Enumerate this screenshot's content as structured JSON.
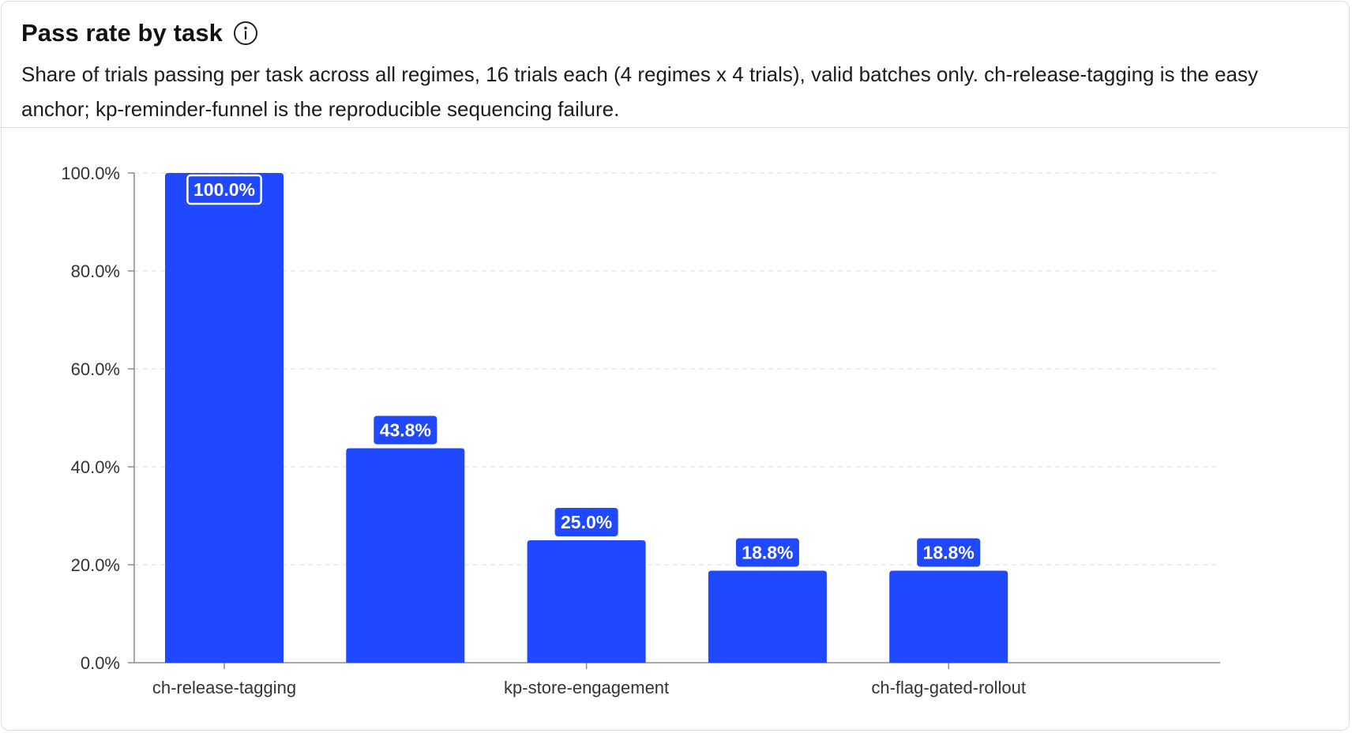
{
  "card": {
    "title": "Pass rate by task",
    "subtitle": "Share of trials passing per task across all regimes, 16 trials each (4 regimes x 4 trials), valid batches only. ch-release-tagging is the easy anchor; kp-reminder-funnel is the reproducible sequencing failure."
  },
  "colors": {
    "bar": "#1f48ff",
    "grid": "#e3e3e3",
    "axis": "#8a8a8a",
    "tick_text": "#333333"
  },
  "chart_data": {
    "type": "bar",
    "title": "Pass rate by task",
    "categories": [
      "ch-release-tagging",
      "",
      "kp-store-engagement",
      "",
      "ch-flag-gated-rollout"
    ],
    "values": [
      100.0,
      43.8,
      25.0,
      18.8,
      18.8
    ],
    "data_labels": [
      "100.0%",
      "43.8%",
      "25.0%",
      "18.8%",
      "18.8%"
    ],
    "ylim": [
      0,
      100
    ],
    "y_ticks": [
      0,
      20,
      40,
      60,
      80,
      100
    ],
    "y_tick_labels": [
      "0.0%",
      "20.0%",
      "40.0%",
      "60.0%",
      "80.0%",
      "100.0%"
    ],
    "grid": true,
    "xlabel": "",
    "ylabel": ""
  }
}
